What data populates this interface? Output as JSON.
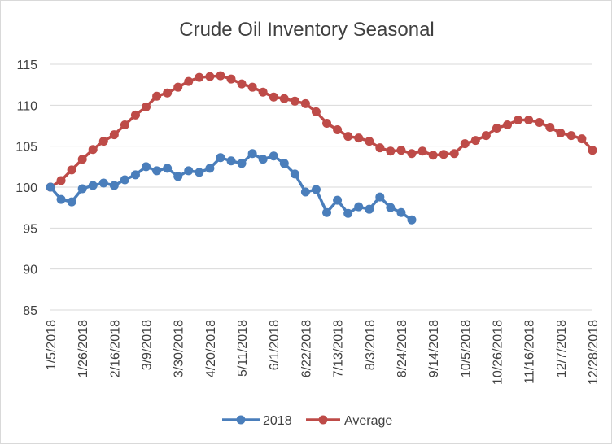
{
  "chart_data": {
    "type": "line",
    "title": "Crude Oil Inventory Seasonal",
    "xlabel": "",
    "ylabel": "",
    "ylim": [
      85,
      115
    ],
    "yticks": [
      "85",
      "90",
      "95",
      "100",
      "105",
      "110",
      "115"
    ],
    "xtick_labels": [
      "1/5/2018",
      "1/26/2018",
      "2/16/2018",
      "3/9/2018",
      "3/30/2018",
      "4/20/2018",
      "5/11/2018",
      "6/1/2018",
      "6/22/2018",
      "7/13/2018",
      "8/3/2018",
      "8/24/2018",
      "9/14/2018",
      "10/5/2018",
      "10/26/2018",
      "11/16/2018",
      "12/7/2018",
      "12/28/2018"
    ],
    "grid": "horizontal",
    "legend_position": "bottom",
    "series": [
      {
        "name": "2018",
        "color": "#4a7ebb",
        "values": [
          100.0,
          98.5,
          98.2,
          99.8,
          100.2,
          100.5,
          100.2,
          100.9,
          101.5,
          102.5,
          102.0,
          102.3,
          101.3,
          102.0,
          101.8,
          102.3,
          103.6,
          103.2,
          102.9,
          104.1,
          103.4,
          103.8,
          102.9,
          101.6,
          99.4,
          99.7,
          96.9,
          98.4,
          96.8,
          97.6,
          97.3,
          98.8,
          97.5,
          96.9,
          96.0
        ]
      },
      {
        "name": "Average",
        "color": "#be4b48",
        "values": [
          100.0,
          100.8,
          102.1,
          103.4,
          104.6,
          105.6,
          106.4,
          107.6,
          108.8,
          109.8,
          111.1,
          111.5,
          112.2,
          112.9,
          113.4,
          113.5,
          113.6,
          113.2,
          112.6,
          112.2,
          111.6,
          111.0,
          110.8,
          110.5,
          110.2,
          109.2,
          107.8,
          107.0,
          106.2,
          106.0,
          105.6,
          104.8,
          104.4,
          104.5,
          104.1,
          104.4,
          103.9,
          104.0,
          104.1,
          105.3,
          105.7,
          106.3,
          107.2,
          107.6,
          108.2,
          108.2,
          107.9,
          107.3,
          106.6,
          106.3,
          105.9,
          104.5
        ]
      }
    ]
  }
}
